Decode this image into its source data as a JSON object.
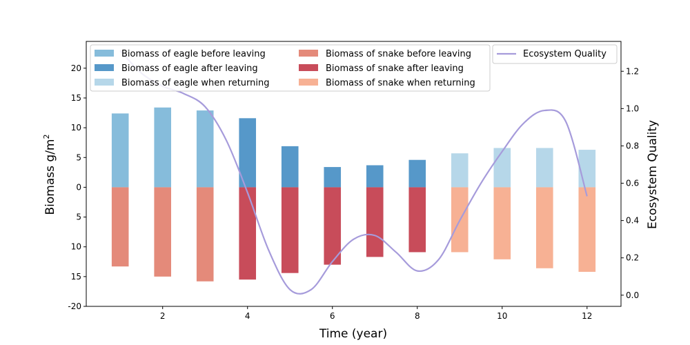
{
  "chart_data": {
    "type": "bar",
    "x": [
      1,
      2,
      3,
      4,
      5,
      6,
      7,
      8,
      9,
      10,
      11,
      12
    ],
    "xlabel": "Time (year)",
    "ylabel": "Biomass g/m",
    "ylabel_sup": "2",
    "y2label": "Ecosystem Quality",
    "xticks": [
      2,
      4,
      6,
      8,
      10,
      12
    ],
    "xlim": [
      0.2,
      12.8
    ],
    "yticks": [
      20,
      15,
      10,
      5,
      0,
      -5,
      -10,
      -15,
      -20
    ],
    "ytick_labels": [
      "20",
      "15",
      "10",
      "5",
      "0",
      "5",
      "10",
      "15",
      "-20"
    ],
    "ylim": [
      -20,
      24.5
    ],
    "y2ticks": [
      0.0,
      0.2,
      0.4,
      0.6,
      0.8,
      1.0,
      1.2
    ],
    "y2tick_labels": [
      "0.0",
      "0.2",
      "0.4",
      "0.6",
      "0.8",
      "1.0",
      "1.2"
    ],
    "y2lim": [
      -0.06,
      1.36
    ],
    "grid": false,
    "series": [
      {
        "name": "Biomass of eagle before leaving",
        "color": "#86bcdb",
        "x": [
          1,
          2,
          3
        ],
        "values": [
          12.4,
          13.4,
          12.9
        ]
      },
      {
        "name": "Biomass of eagle after leaving",
        "color": "#5698c9",
        "x": [
          4,
          5,
          6,
          7,
          8
        ],
        "values": [
          11.6,
          6.9,
          3.4,
          3.7,
          4.6
        ]
      },
      {
        "name": "Biomass of eagle when returning",
        "color": "#b6d7e9",
        "x": [
          9,
          10,
          11,
          12
        ],
        "values": [
          5.7,
          6.6,
          6.6,
          6.3
        ]
      },
      {
        "name": "Biomass of snake before leaving",
        "color": "#e48a7a",
        "x": [
          1,
          2,
          3
        ],
        "values": [
          -13.3,
          -15.0,
          -15.8
        ]
      },
      {
        "name": "Biomass of snake after leaving",
        "color": "#c84c5a",
        "x": [
          4,
          5,
          6,
          7,
          8
        ],
        "values": [
          -15.5,
          -14.4,
          -13.0,
          -11.7,
          -10.9
        ]
      },
      {
        "name": "Biomass of snake when returning",
        "color": "#f7b194",
        "x": [
          9,
          10,
          11,
          12
        ],
        "values": [
          -10.9,
          -12.1,
          -13.6,
          -14.2
        ]
      },
      {
        "name": "Ecosystem Quality",
        "color": "#a69bdb",
        "type": "line",
        "axis": "right",
        "x": [
          1,
          1.5,
          2,
          2.5,
          3,
          3.5,
          4,
          4.5,
          5,
          5.5,
          6,
          6.5,
          7,
          7.5,
          8,
          8.5,
          9,
          9.5,
          10,
          10.5,
          11,
          11.5,
          12
        ],
        "values": [
          1.31,
          1.19,
          1.12,
          1.08,
          1.01,
          0.83,
          0.55,
          0.24,
          0.03,
          0.03,
          0.18,
          0.3,
          0.32,
          0.23,
          0.13,
          0.19,
          0.4,
          0.6,
          0.77,
          0.92,
          0.99,
          0.93,
          0.53
        ]
      }
    ],
    "legend_placement": "top"
  }
}
